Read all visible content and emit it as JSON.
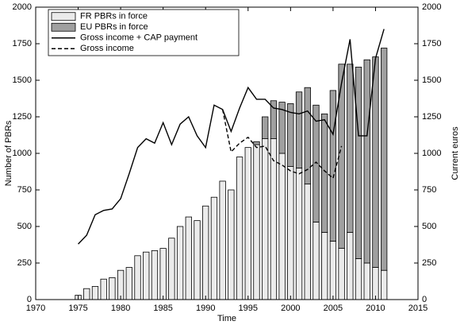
{
  "chart_data": {
    "type": "bar-line",
    "xlabel": "Time",
    "ylabel": "Number of PBRs",
    "y2label": "Current euros",
    "x": [
      1975,
      1976,
      1977,
      1978,
      1979,
      1980,
      1981,
      1982,
      1983,
      1984,
      1985,
      1986,
      1987,
      1988,
      1989,
      1990,
      1991,
      1992,
      1993,
      1994,
      1995,
      1996,
      1997,
      1998,
      1999,
      2000,
      2001,
      2002,
      2003,
      2004,
      2005,
      2006,
      2007,
      2008,
      2009,
      2010,
      2011
    ],
    "xlim": [
      1970,
      2015
    ],
    "xticks": [
      1970,
      1975,
      1980,
      1985,
      1990,
      1995,
      2000,
      2005,
      2010,
      2015
    ],
    "ylim": [
      0,
      2000
    ],
    "yticks": [
      0,
      250,
      500,
      750,
      1000,
      1250,
      1500,
      1750,
      2000
    ],
    "y2lim": [
      0,
      2000
    ],
    "y2ticks": [
      0,
      250,
      500,
      750,
      1000,
      1250,
      1500,
      1750,
      2000
    ],
    "stacked": true,
    "series": [
      {
        "name": "FR PBRs in force",
        "kind": "bar",
        "color": "#ebebeb",
        "values": [
          30,
          75,
          90,
          140,
          150,
          200,
          220,
          300,
          325,
          335,
          350,
          420,
          500,
          565,
          540,
          640,
          700,
          810,
          750,
          975,
          1040,
          1060,
          1100,
          1100,
          1000,
          910,
          900,
          790,
          530,
          460,
          400,
          350,
          460,
          280,
          250,
          220,
          200
        ]
      },
      {
        "name": "EU PBRs in force",
        "kind": "bar",
        "color": "#a0a0a0",
        "values": [
          null,
          null,
          null,
          null,
          null,
          null,
          null,
          null,
          null,
          null,
          null,
          null,
          null,
          null,
          null,
          null,
          null,
          null,
          null,
          null,
          null,
          20,
          150,
          260,
          350,
          430,
          520,
          660,
          800,
          810,
          1030,
          1260,
          1150,
          1310,
          1390,
          1440,
          1520
        ]
      },
      {
        "name": "Gross income + CAP payment",
        "kind": "line",
        "axis": "y2",
        "color": "#000000",
        "style": "solid",
        "values": [
          380,
          440,
          580,
          610,
          620,
          690,
          860,
          1040,
          1100,
          1070,
          1210,
          1060,
          1200,
          1250,
          1120,
          1040,
          1330,
          1300,
          1150,
          1310,
          1450,
          1370,
          1370,
          1310,
          1300,
          1280,
          1270,
          1290,
          1220,
          1230,
          1130,
          1480,
          1780,
          1120,
          1120,
          1650,
          1850
        ]
      },
      {
        "name": "Gross income",
        "kind": "line",
        "axis": "y2",
        "color": "#000000",
        "style": "dashed",
        "values": [
          null,
          null,
          null,
          null,
          null,
          null,
          null,
          null,
          null,
          null,
          null,
          null,
          null,
          null,
          null,
          null,
          null,
          1300,
          1010,
          1070,
          1110,
          1040,
          1050,
          950,
          920,
          880,
          860,
          890,
          940,
          880,
          830,
          1050,
          null,
          null,
          null,
          null,
          null
        ]
      }
    ]
  }
}
